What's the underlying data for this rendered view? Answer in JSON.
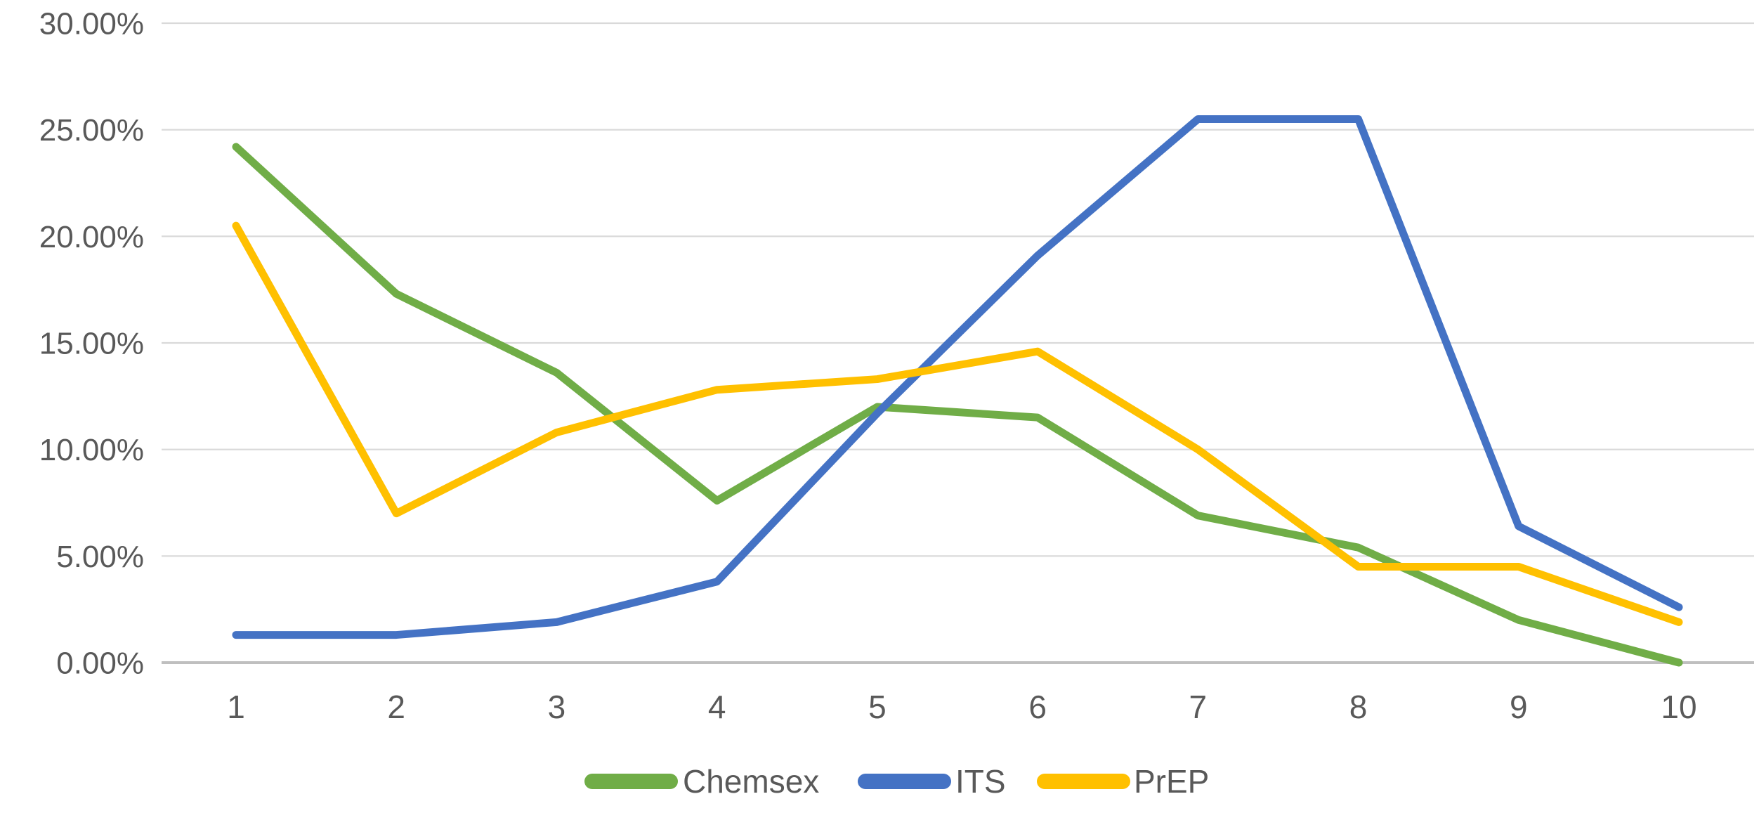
{
  "chart_data": {
    "type": "line",
    "title": "",
    "xlabel": "",
    "ylabel": "",
    "grid": true,
    "legend_position": "bottom",
    "ylim": [
      0,
      30
    ],
    "ytick_step": 5,
    "ytick_labels": [
      "0.00%",
      "5.00%",
      "10.00%",
      "15.00%",
      "20.00%",
      "25.00%",
      "30.00%"
    ],
    "categories": [
      "1",
      "2",
      "3",
      "4",
      "5",
      "6",
      "7",
      "8",
      "9",
      "10"
    ],
    "series": [
      {
        "name": "Chemsex",
        "color": "#70AD47",
        "values": [
          24.2,
          17.3,
          13.6,
          7.6,
          12.0,
          11.5,
          6.9,
          5.4,
          2.0,
          0.0
        ]
      },
      {
        "name": "ITS",
        "color": "#4472C4",
        "values": [
          1.3,
          1.3,
          1.9,
          3.8,
          11.7,
          19.1,
          25.5,
          25.5,
          6.4,
          2.6
        ]
      },
      {
        "name": "PrEP",
        "color": "#FFC000",
        "values": [
          20.5,
          7.0,
          10.8,
          12.8,
          13.3,
          14.6,
          10.0,
          4.5,
          4.5,
          1.9
        ]
      }
    ]
  },
  "colors": {
    "background": "#ffffff",
    "gridline": "#D9D9D9",
    "axis_line": "#BFBFBF",
    "tick_text": "#595959",
    "legend_text": "#595959"
  }
}
